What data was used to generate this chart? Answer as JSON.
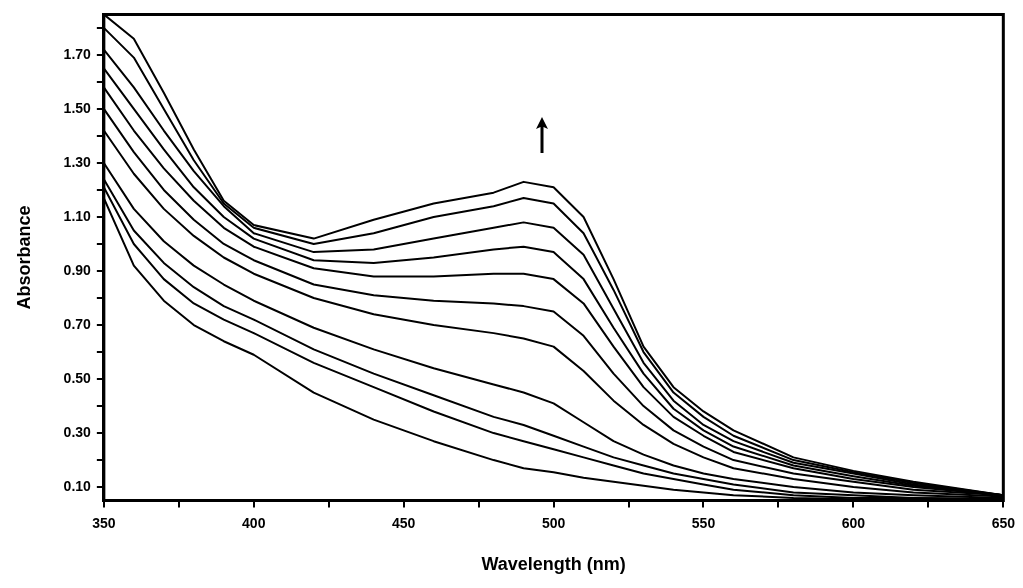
{
  "chart_data": {
    "type": "line",
    "xlabel": "Wavelength (nm)",
    "ylabel": "Absorbance",
    "x": [
      350,
      360,
      370,
      380,
      390,
      400,
      420,
      440,
      460,
      480,
      490,
      500,
      510,
      520,
      530,
      540,
      550,
      560,
      580,
      600,
      620,
      650
    ],
    "xlim": [
      350,
      650
    ],
    "xticks": [
      350,
      {
        "value": 375,
        "label": null
      },
      400,
      {
        "value": 425,
        "label": null
      },
      450,
      {
        "value": 475,
        "label": null
      },
      500,
      {
        "value": 525,
        "label": null
      },
      550,
      {
        "value": 575,
        "label": null
      },
      600,
      {
        "value": 625,
        "label": null
      },
      650
    ],
    "ylim": [
      0.05,
      1.85
    ],
    "yticks": [
      {
        "value": 0.1,
        "label": "0.10"
      },
      {
        "value": 0.2,
        "label": null
      },
      {
        "value": 0.3,
        "label": "0.30"
      },
      {
        "value": 0.4,
        "label": null
      },
      {
        "value": 0.5,
        "label": "0.50"
      },
      {
        "value": 0.6,
        "label": null
      },
      {
        "value": 0.7,
        "label": "0.70"
      },
      {
        "value": 0.8,
        "label": null
      },
      {
        "value": 0.9,
        "label": "0.90"
      },
      {
        "value": 1.0,
        "label": null
      },
      {
        "value": 1.1,
        "label": "1.10"
      },
      {
        "value": 1.2,
        "label": null
      },
      {
        "value": 1.3,
        "label": "1.30"
      },
      {
        "value": 1.4,
        "label": null
      },
      {
        "value": 1.5,
        "label": "1.50"
      },
      {
        "value": 1.6,
        "label": null
      },
      {
        "value": 1.7,
        "label": "1.70"
      },
      {
        "value": 1.8,
        "label": null
      }
    ],
    "grid": false,
    "legend": false,
    "marker": "none",
    "line_style": "solid",
    "series": [
      {
        "color": "#000000",
        "values": [
          1.17,
          0.92,
          0.79,
          0.7,
          0.64,
          0.59,
          0.45,
          0.35,
          0.27,
          0.2,
          0.17,
          0.155,
          0.135,
          0.12,
          0.105,
          0.09,
          0.08,
          0.07,
          0.06,
          0.055,
          0.055,
          0.05
        ]
      },
      {
        "color": "#000000",
        "values": [
          1.21,
          1.0,
          0.87,
          0.78,
          0.72,
          0.67,
          0.56,
          0.47,
          0.38,
          0.3,
          0.27,
          0.24,
          0.21,
          0.18,
          0.15,
          0.13,
          0.11,
          0.09,
          0.07,
          0.06,
          0.06,
          0.055
        ]
      },
      {
        "color": "#000000",
        "values": [
          1.24,
          1.05,
          0.93,
          0.84,
          0.77,
          0.72,
          0.61,
          0.52,
          0.44,
          0.36,
          0.33,
          0.29,
          0.25,
          0.21,
          0.18,
          0.15,
          0.13,
          0.11,
          0.08,
          0.07,
          0.06,
          0.055
        ]
      },
      {
        "color": "#000000",
        "values": [
          1.3,
          1.13,
          1.01,
          0.92,
          0.85,
          0.79,
          0.69,
          0.61,
          0.54,
          0.48,
          0.45,
          0.41,
          0.34,
          0.27,
          0.22,
          0.18,
          0.15,
          0.13,
          0.1,
          0.08,
          0.07,
          0.06
        ]
      },
      {
        "color": "#000000",
        "values": [
          1.42,
          1.26,
          1.13,
          1.03,
          0.95,
          0.89,
          0.8,
          0.74,
          0.7,
          0.67,
          0.65,
          0.62,
          0.53,
          0.42,
          0.33,
          0.26,
          0.21,
          0.17,
          0.13,
          0.1,
          0.08,
          0.065
        ]
      },
      {
        "color": "#000000",
        "values": [
          1.5,
          1.34,
          1.2,
          1.09,
          1.0,
          0.94,
          0.85,
          0.81,
          0.79,
          0.78,
          0.77,
          0.75,
          0.66,
          0.52,
          0.4,
          0.31,
          0.25,
          0.2,
          0.15,
          0.12,
          0.09,
          0.07
        ]
      },
      {
        "color": "#000000",
        "values": [
          1.58,
          1.42,
          1.28,
          1.16,
          1.06,
          0.99,
          0.91,
          0.88,
          0.88,
          0.89,
          0.89,
          0.87,
          0.78,
          0.62,
          0.47,
          0.36,
          0.29,
          0.23,
          0.17,
          0.13,
          0.1,
          0.07
        ]
      },
      {
        "color": "#000000",
        "values": [
          1.65,
          1.5,
          1.35,
          1.21,
          1.1,
          1.02,
          0.94,
          0.93,
          0.95,
          0.98,
          0.99,
          0.97,
          0.87,
          0.69,
          0.52,
          0.39,
          0.31,
          0.25,
          0.18,
          0.14,
          0.105,
          0.07
        ]
      },
      {
        "color": "#000000",
        "values": [
          1.72,
          1.58,
          1.42,
          1.27,
          1.14,
          1.04,
          0.97,
          0.98,
          1.02,
          1.06,
          1.08,
          1.06,
          0.96,
          0.76,
          0.56,
          0.42,
          0.33,
          0.27,
          0.19,
          0.15,
          0.11,
          0.07
        ]
      },
      {
        "color": "#000000",
        "values": [
          1.8,
          1.69,
          1.5,
          1.31,
          1.15,
          1.06,
          1.0,
          1.04,
          1.1,
          1.14,
          1.17,
          1.15,
          1.04,
          0.83,
          0.6,
          0.45,
          0.36,
          0.29,
          0.2,
          0.155,
          0.115,
          0.07
        ]
      },
      {
        "color": "#000000",
        "values": [
          1.85,
          1.76,
          1.56,
          1.35,
          1.16,
          1.07,
          1.02,
          1.09,
          1.15,
          1.19,
          1.23,
          1.21,
          1.1,
          0.87,
          0.62,
          0.47,
          0.38,
          0.31,
          0.21,
          0.16,
          0.12,
          0.07
        ]
      }
    ]
  }
}
